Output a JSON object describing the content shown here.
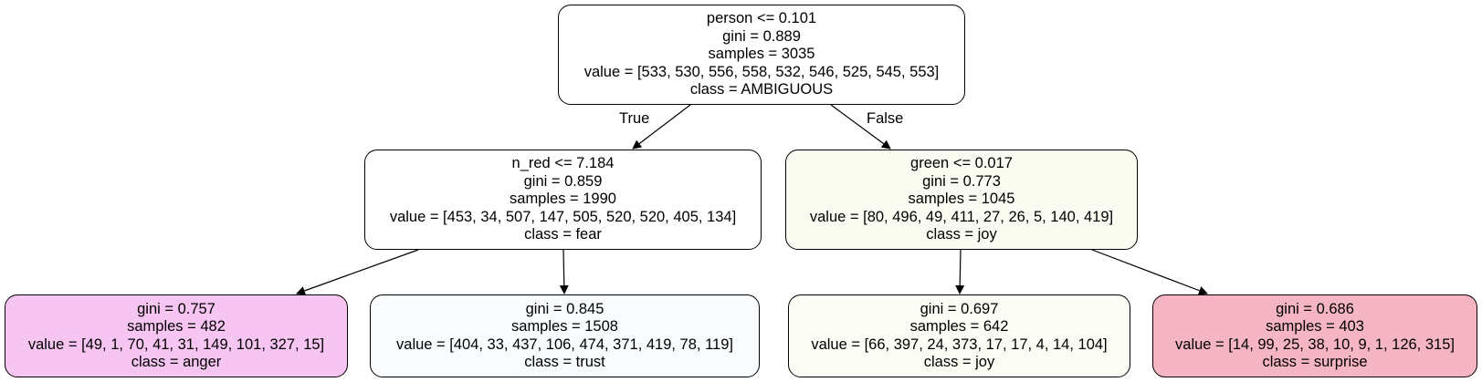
{
  "tree": {
    "root": {
      "split": "person <= 0.101",
      "gini": "gini = 0.889",
      "samples": "samples = 3035",
      "value": "value = [533, 530, 556, 558, 532, 546, 525, 545, 553]",
      "class": "class = AMBIGUOUS",
      "fill": "#ffffff"
    },
    "edge_labels": {
      "true": "True",
      "false": "False"
    },
    "left": {
      "split": "n_red <= 7.184",
      "gini": "gini = 0.859",
      "samples": "samples = 1990",
      "value": "value = [453, 34, 507, 147, 505, 520, 520, 405, 134]",
      "class": "class = fear",
      "fill": "#ffffff"
    },
    "right": {
      "split": "green <= 0.017",
      "gini": "gini = 0.773",
      "samples": "samples = 1045",
      "value": "value = [80, 496, 49, 411, 27, 26, 5, 140, 419]",
      "class": "class = joy",
      "fill": "#fafcf2"
    },
    "left_left": {
      "gini": "gini = 0.757",
      "samples": "samples = 482",
      "value": "value = [49, 1, 70, 41, 31, 149, 101, 327, 15]",
      "class": "class = anger",
      "fill": "#f7c5f1"
    },
    "left_right": {
      "gini": "gini = 0.845",
      "samples": "samples = 1508",
      "value": "value = [404, 33, 437, 106, 474, 371, 419, 78, 119]",
      "class": "class = trust",
      "fill": "#f8fcfe"
    },
    "right_left": {
      "gini": "gini = 0.697",
      "samples": "samples = 642",
      "value": "value = [66, 397, 24, 373, 17, 17, 4, 14, 104]",
      "class": "class = joy",
      "fill": "#fbfdf4"
    },
    "right_right": {
      "gini": "gini = 0.686",
      "samples": "samples = 403",
      "value": "value = [14, 99, 25, 38, 10, 9, 1, 126, 315]",
      "class": "class = surprise",
      "fill": "#f5b5c2"
    }
  }
}
